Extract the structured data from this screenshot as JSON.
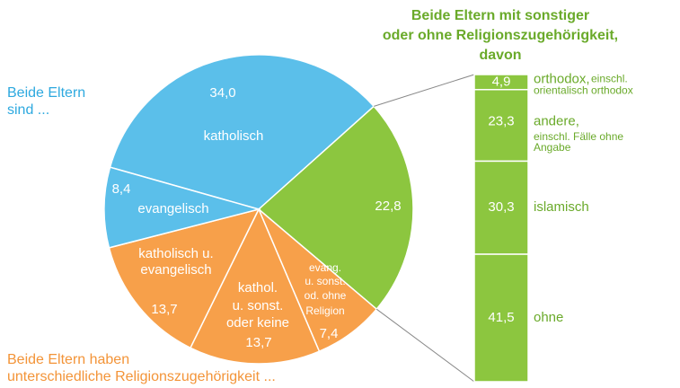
{
  "chart_data": {
    "type": "pie-of-bar",
    "pie": {
      "categories": [
        [
          "katholisch"
        ],
        null,
        [
          "evang.",
          "u. sonst.",
          "od. ohne",
          "Religion"
        ],
        [
          "kathol.",
          "u. sonst.",
          "oder keine"
        ],
        [
          "katholisch u.",
          "evangelisch"
        ],
        [
          "evangelisch"
        ]
      ],
      "values": [
        34.0,
        22.8,
        7.4,
        13.7,
        13.7,
        8.4
      ],
      "value_labels": [
        "34,0",
        "22,8",
        "7,4",
        "13,7",
        "13,7",
        "8,4"
      ],
      "colors": [
        "#5bbfea",
        "#8cc63f",
        "#f7a04a",
        "#f7a04a",
        "#f7a04a",
        "#5bbfea"
      ]
    },
    "bar": {
      "title": [
        "Beide Eltern mit sonstiger",
        "oder ohne Religionszugehörigkeit,",
        "davon"
      ],
      "categories": [
        "orthodox,",
        "andere,",
        "islamisch",
        "ohne"
      ],
      "notes": [
        [
          "einschl.",
          "orientalisch orthodox"
        ],
        [
          "einschl. Fälle ohne",
          "Angabe"
        ],
        [],
        []
      ],
      "values": [
        4.9,
        23.3,
        30.3,
        41.5
      ],
      "value_labels": [
        "4,9",
        "23,3",
        "30,3",
        "41,5"
      ],
      "color": "#8cc63f"
    },
    "group_labels": [
      {
        "lines": [
          "Beide Eltern",
          "sind ..."
        ],
        "color": "#2ea9df"
      },
      {
        "lines": [
          "Beide Eltern haben",
          "unterschiedliche Religionszugehörigkeit ..."
        ],
        "color": "#f39438"
      }
    ]
  }
}
